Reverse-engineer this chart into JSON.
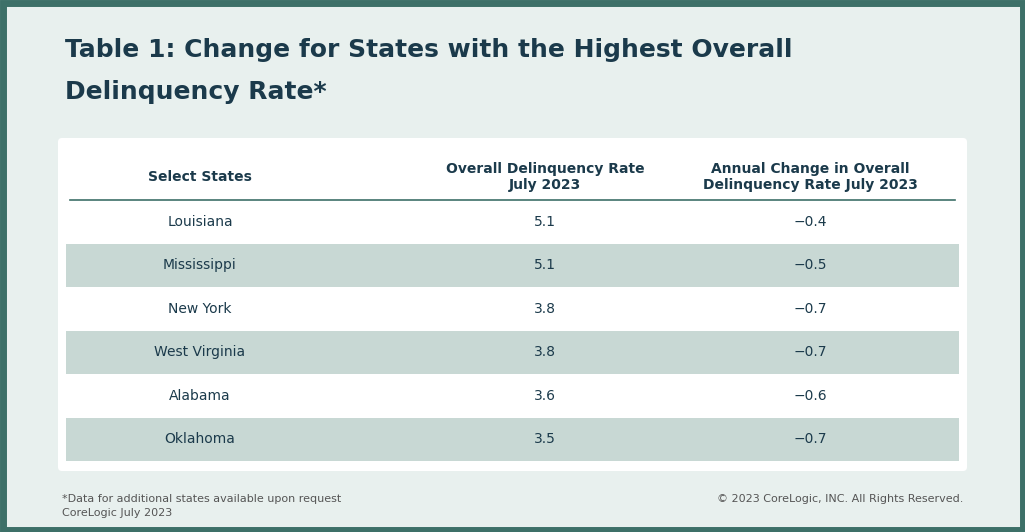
{
  "title_line1": "Table 1: Change for States with the Highest Overall",
  "title_line2": "Delinquency Rate*",
  "title_color": "#1b3a4b",
  "background_color": "#e8f0ee",
  "outer_border_color": "#3d7068",
  "table_bg_white": "#ffffff",
  "table_bg_shaded": "#c8d8d4",
  "header_col1": "Select States",
  "header_col2": "Overall Delinquency Rate\nJuly 2023",
  "header_col3": "Annual Change in Overall\nDelinquency Rate July 2023",
  "header_color": "#1b3a4b",
  "rows": [
    {
      "state": "Louisiana",
      "rate": "5.1",
      "change": "−0.4",
      "shaded": false
    },
    {
      "state": "Mississippi",
      "rate": "5.1",
      "change": "−0.5",
      "shaded": true
    },
    {
      "state": "New York",
      "rate": "3.8",
      "change": "−0.7",
      "shaded": false
    },
    {
      "state": "West Virginia",
      "rate": "3.8",
      "change": "−0.7",
      "shaded": true
    },
    {
      "state": "Alabama",
      "rate": "3.6",
      "change": "−0.6",
      "shaded": false
    },
    {
      "state": "Oklahoma",
      "rate": "3.5",
      "change": "−0.7",
      "shaded": true
    }
  ],
  "footer_left_line1": "*Data for additional states available upon request",
  "footer_left_line2": "CoreLogic July 2023",
  "footer_right": "© 2023 CoreLogic, INC. All Rights Reserved.",
  "footer_color": "#555555",
  "cell_text_color": "#1b3a4b",
  "divider_color": "#3d7068",
  "border_width": 6
}
